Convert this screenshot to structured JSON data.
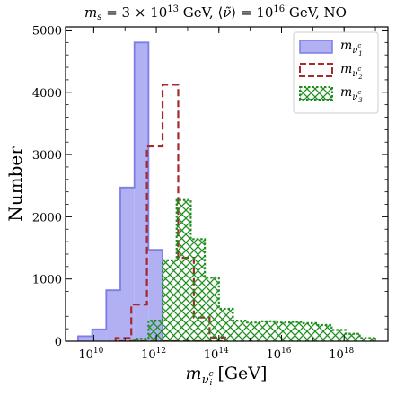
{
  "chart_data": {
    "type": "histogram",
    "title": "m_s = 3 × 10^13 GeV, ⟨ν̃^c_H⟩ = 10^16 GeV, NO",
    "title_parts": {
      "a": "m",
      "a_sub": "s",
      "b": " = 3 × 10",
      "b_sup": "13",
      "c": " GeV, ⟨",
      "d": "ν̃",
      "e": "⟩ = 10",
      "e_sup": "16",
      "f": " GeV, NO"
    },
    "xlabel": "m_{ν_i^c} [GeV]",
    "xlabel_parts": {
      "m": "m",
      "sub": "ν",
      "subsup": "c",
      "subsub": "i",
      "unit": " [GeV]"
    },
    "ylabel": "Number",
    "x_scale": "log10",
    "xlim_log10": [
      9.1,
      19.4
    ],
    "ylim": [
      0,
      5050
    ],
    "y_ticks": [
      0,
      1000,
      2000,
      3000,
      4000,
      5000
    ],
    "x_ticks": [
      {
        "log10": 10,
        "label_base": "10",
        "label_exp": "10"
      },
      {
        "log10": 12,
        "label_base": "10",
        "label_exp": "12"
      },
      {
        "log10": 14,
        "label_base": "10",
        "label_exp": "14"
      },
      {
        "log10": 16,
        "label_base": "10",
        "label_exp": "16"
      },
      {
        "log10": 18,
        "label_base": "10",
        "label_exp": "18"
      }
    ],
    "legend_position": "top-right",
    "series": [
      {
        "name": "m_{ν_1^c}",
        "legend_sub": "1",
        "style": "filled",
        "fill": "#b0b0f2",
        "stroke": "#7d7de6",
        "bin_edges_log10": [
          9.5,
          9.95,
          10.4,
          10.85,
          11.3,
          11.75,
          12.2,
          12.65
        ],
        "counts": [
          80,
          190,
          820,
          2470,
          4800,
          1470,
          0
        ]
      },
      {
        "name": "m_{ν_2^c}",
        "legend_sub": "2",
        "style": "dashed",
        "stroke": "#a5292e",
        "bin_edges_log10": [
          10.7,
          11.2,
          11.7,
          12.2,
          12.7,
          13.2,
          13.7,
          14.2
        ],
        "counts": [
          50,
          590,
          3130,
          4120,
          1340,
          380,
          60
        ]
      },
      {
        "name": "m_{ν_3^c}",
        "legend_sub": "3",
        "style": "hatched",
        "stroke": "#1d8f1d",
        "bin_edges_log10": [
          11.3,
          11.75,
          12.2,
          12.65,
          13.1,
          13.55,
          14.0,
          14.45,
          14.9,
          15.35,
          15.8,
          16.25,
          16.7,
          17.15,
          17.6,
          18.05,
          18.5,
          18.95
        ],
        "counts": [
          40,
          330,
          1300,
          2270,
          1640,
          1020,
          520,
          330,
          300,
          320,
          300,
          310,
          290,
          260,
          180,
          120,
          50
        ]
      }
    ]
  }
}
